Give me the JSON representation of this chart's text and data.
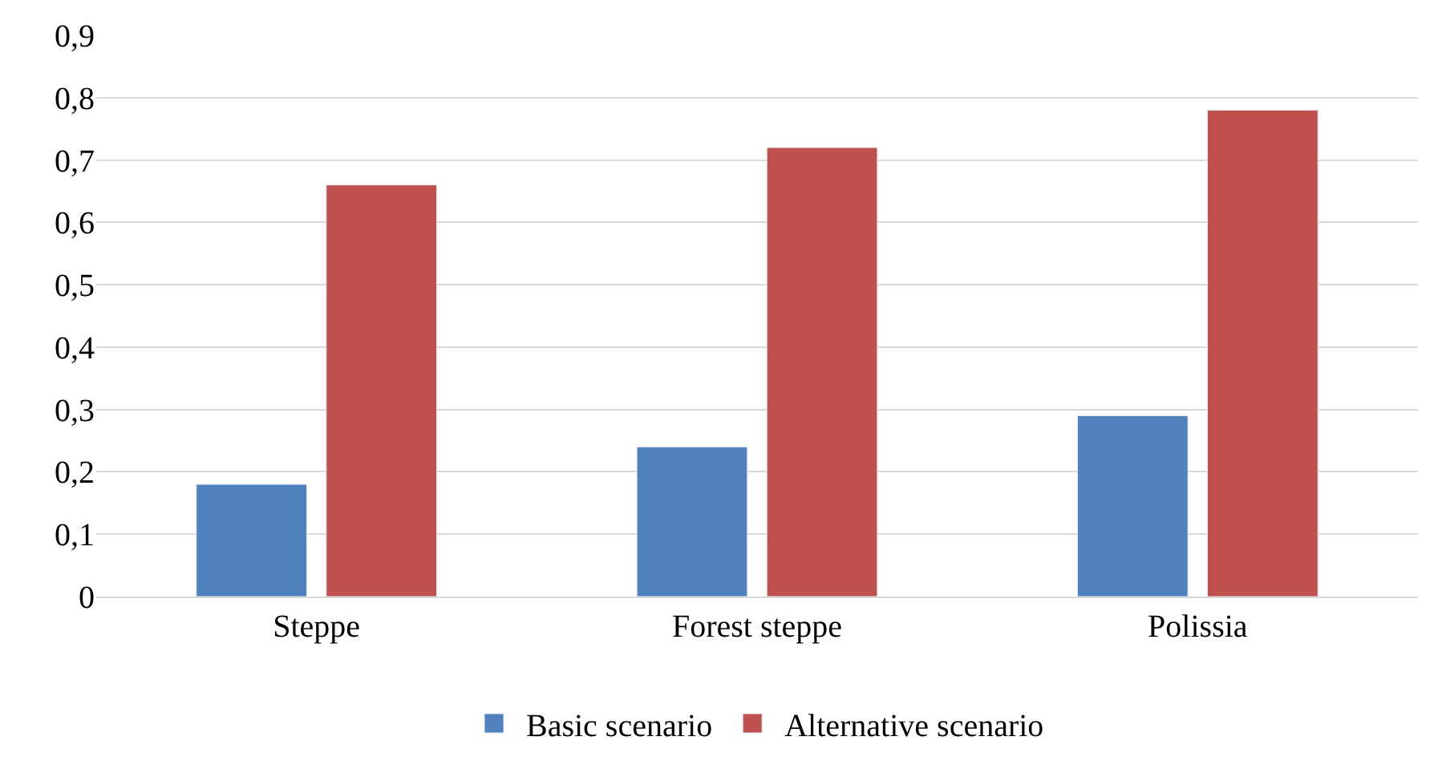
{
  "chart_data": {
    "type": "bar",
    "categories": [
      "Steppe",
      "Forest steppe",
      "Polissia"
    ],
    "series": [
      {
        "name": "Basic scenario",
        "color": "#4f81bd",
        "values": [
          0.18,
          0.24,
          0.29
        ]
      },
      {
        "name": "Alternative scenario",
        "color": "#c0504d",
        "values": [
          0.66,
          0.72,
          0.78
        ]
      }
    ],
    "ylim": [
      0,
      0.9
    ],
    "yticks": [
      0,
      {
        "value": 0.1,
        "label": "0,1"
      },
      {
        "value": 0.2,
        "label": "0,2"
      },
      {
        "value": 0.3,
        "label": "0,3"
      },
      {
        "value": 0.4,
        "label": "0,4"
      },
      {
        "value": 0.5,
        "label": "0,5"
      },
      {
        "value": 0.6,
        "label": "0,6"
      },
      {
        "value": 0.7,
        "label": "0,7"
      },
      {
        "value": 0.8,
        "label": "0,8"
      },
      {
        "value": 0.9,
        "label": "0,9"
      }
    ],
    "grid": "y",
    "legend": "bottom"
  }
}
